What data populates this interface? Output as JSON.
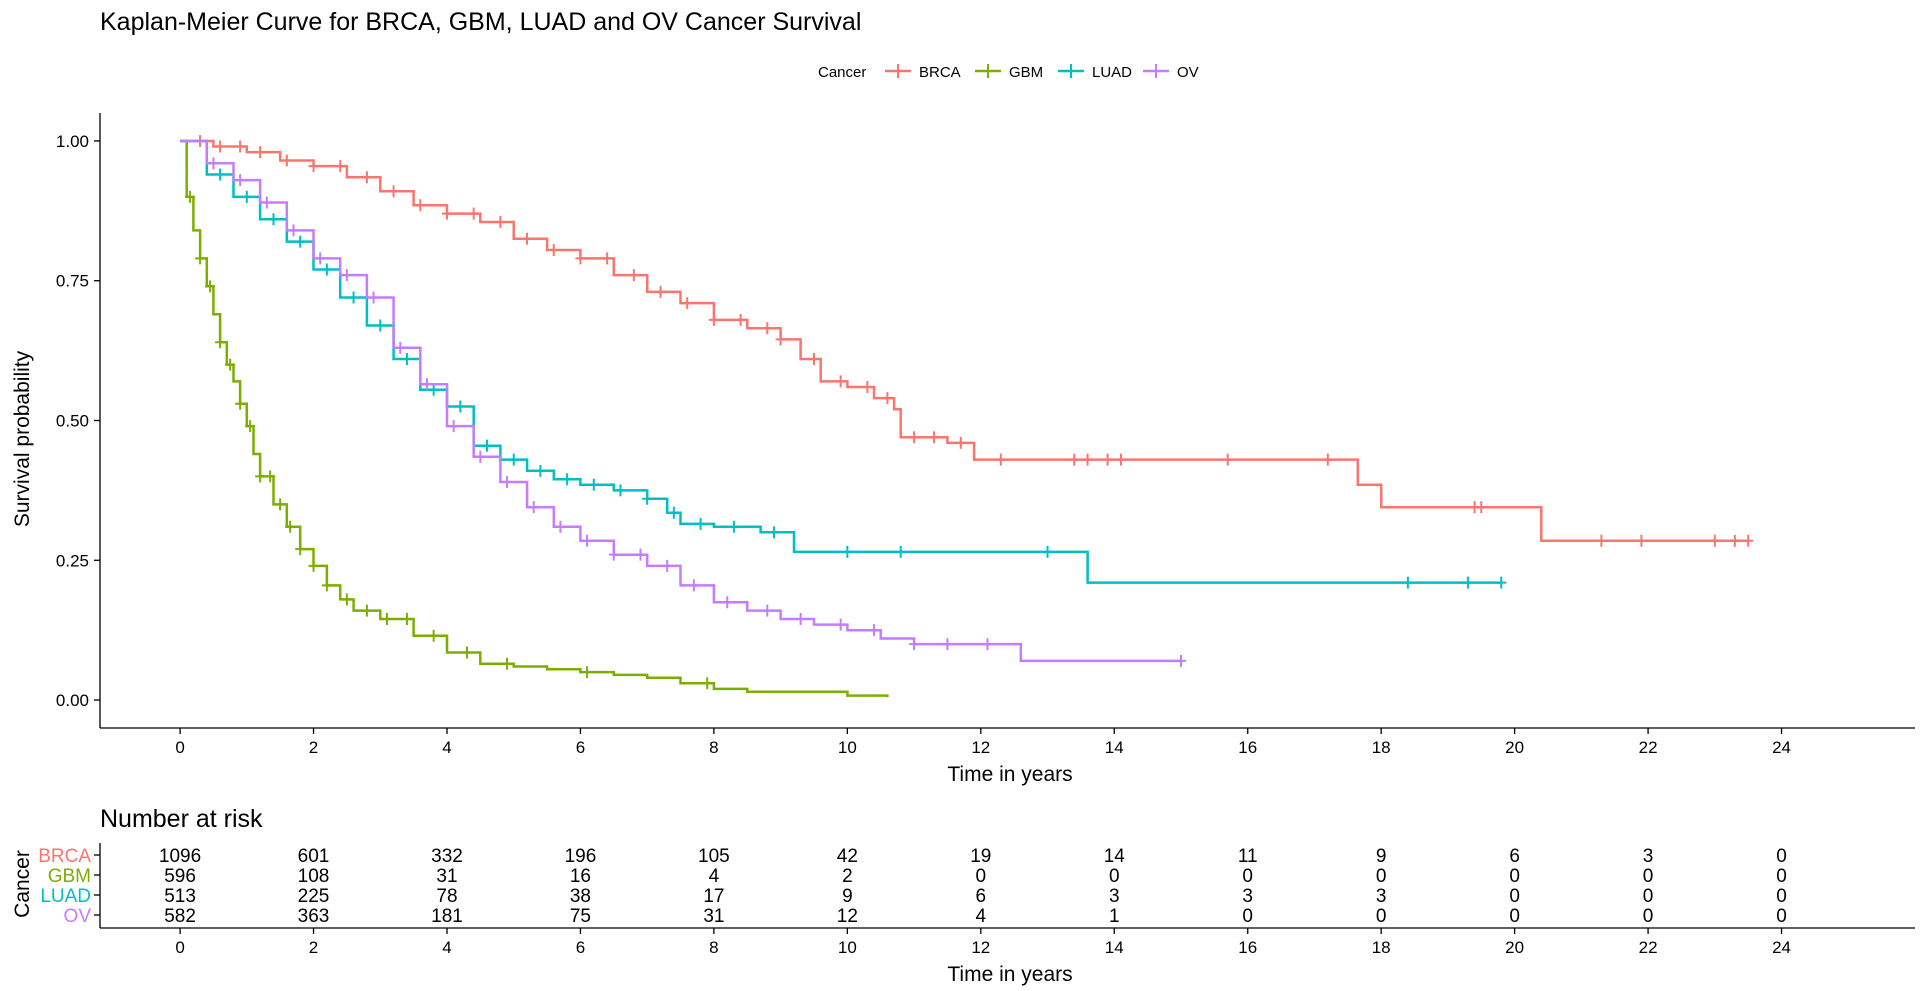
{
  "chart_data": [
    {
      "type": "line",
      "title": "Kaplan-Meier Curve for BRCA, GBM, LUAD and OV Cancer Survival",
      "xlabel": "Time in years",
      "ylabel": "Survival probability",
      "xlim": [
        -1.2,
        26.0
      ],
      "ylim": [
        -0.05,
        1.05
      ],
      "x_ticks": [
        0,
        2,
        4,
        6,
        8,
        10,
        12,
        14,
        16,
        18,
        20,
        22,
        24
      ],
      "y_ticks": [
        0,
        0.25,
        0.5,
        0.75,
        1.0
      ],
      "y_tick_labels": [
        "0.00",
        "0.25",
        "0.50",
        "0.75",
        "1.00"
      ],
      "grid": false,
      "legend": {
        "title": "Cancer",
        "position": "top",
        "entries": [
          "BRCA",
          "GBM",
          "LUAD",
          "OV"
        ]
      },
      "colors": {
        "BRCA": "#f8766d",
        "GBM": "#7cae00",
        "LUAD": "#00bfc4",
        "OV": "#c77cff"
      },
      "series": [
        {
          "name": "BRCA",
          "color": "#f8766d",
          "points": [
            [
              0,
              1.0
            ],
            [
              0.5,
              0.99
            ],
            [
              1.0,
              0.98
            ],
            [
              1.5,
              0.965
            ],
            [
              2.0,
              0.955
            ],
            [
              2.5,
              0.935
            ],
            [
              3.0,
              0.91
            ],
            [
              3.5,
              0.885
            ],
            [
              4.0,
              0.87
            ],
            [
              4.5,
              0.855
            ],
            [
              5.0,
              0.825
            ],
            [
              5.5,
              0.805
            ],
            [
              6.0,
              0.79
            ],
            [
              6.5,
              0.76
            ],
            [
              7.0,
              0.73
            ],
            [
              7.5,
              0.71
            ],
            [
              8.0,
              0.68
            ],
            [
              8.5,
              0.665
            ],
            [
              9.0,
              0.645
            ],
            [
              9.3,
              0.61
            ],
            [
              9.6,
              0.57
            ],
            [
              10.0,
              0.56
            ],
            [
              10.4,
              0.54
            ],
            [
              10.7,
              0.52
            ],
            [
              10.8,
              0.47
            ],
            [
              11.5,
              0.46
            ],
            [
              11.9,
              0.43
            ],
            [
              13.0,
              0.43
            ],
            [
              17.0,
              0.43
            ],
            [
              17.65,
              0.43
            ],
            [
              17.65,
              0.385
            ],
            [
              18.0,
              0.385
            ],
            [
              18.0,
              0.345
            ],
            [
              20.4,
              0.345
            ],
            [
              20.4,
              0.285
            ],
            [
              23.5,
              0.285
            ]
          ],
          "censor_times": [
            0.3,
            0.6,
            0.9,
            1.2,
            1.6,
            2.0,
            2.4,
            2.8,
            3.2,
            3.6,
            4.0,
            4.4,
            4.8,
            5.2,
            5.6,
            6.0,
            6.4,
            6.8,
            7.2,
            7.6,
            8.0,
            8.4,
            8.8,
            9.0,
            9.5,
            9.9,
            10.3,
            10.6,
            11.0,
            11.3,
            11.7,
            12.3,
            13.4,
            13.6,
            13.9,
            14.1,
            15.7,
            17.2,
            19.4,
            19.5,
            21.3,
            21.9,
            23.0,
            23.3,
            23.5
          ]
        },
        {
          "name": "GBM",
          "color": "#7cae00",
          "points": [
            [
              0,
              1.0
            ],
            [
              0.1,
              0.9
            ],
            [
              0.2,
              0.84
            ],
            [
              0.3,
              0.79
            ],
            [
              0.4,
              0.74
            ],
            [
              0.5,
              0.69
            ],
            [
              0.6,
              0.64
            ],
            [
              0.7,
              0.6
            ],
            [
              0.8,
              0.57
            ],
            [
              0.9,
              0.53
            ],
            [
              1.0,
              0.49
            ],
            [
              1.1,
              0.44
            ],
            [
              1.2,
              0.4
            ],
            [
              1.4,
              0.35
            ],
            [
              1.6,
              0.31
            ],
            [
              1.8,
              0.27
            ],
            [
              2.0,
              0.24
            ],
            [
              2.2,
              0.205
            ],
            [
              2.4,
              0.18
            ],
            [
              2.6,
              0.16
            ],
            [
              3.0,
              0.145
            ],
            [
              3.5,
              0.115
            ],
            [
              4.0,
              0.085
            ],
            [
              4.5,
              0.065
            ],
            [
              5.0,
              0.06
            ],
            [
              5.5,
              0.055
            ],
            [
              6.0,
              0.05
            ],
            [
              6.5,
              0.045
            ],
            [
              7.0,
              0.04
            ],
            [
              7.5,
              0.03
            ],
            [
              8.0,
              0.02
            ],
            [
              8.5,
              0.015
            ],
            [
              9.0,
              0.015
            ],
            [
              9.5,
              0.015
            ],
            [
              10.0,
              0.008
            ],
            [
              10.6,
              0.005
            ]
          ],
          "censor_times": [
            0.15,
            0.3,
            0.45,
            0.6,
            0.75,
            0.9,
            1.05,
            1.2,
            1.35,
            1.5,
            1.65,
            1.8,
            2.0,
            2.2,
            2.5,
            2.8,
            3.1,
            3.4,
            3.8,
            4.3,
            4.9,
            6.1,
            7.9
          ]
        },
        {
          "name": "LUAD",
          "color": "#00bfc4",
          "points": [
            [
              0,
              1.0
            ],
            [
              0.4,
              0.94
            ],
            [
              0.8,
              0.9
            ],
            [
              1.2,
              0.86
            ],
            [
              1.6,
              0.82
            ],
            [
              2.0,
              0.77
            ],
            [
              2.4,
              0.72
            ],
            [
              2.8,
              0.67
            ],
            [
              3.2,
              0.61
            ],
            [
              3.6,
              0.555
            ],
            [
              4.0,
              0.525
            ],
            [
              4.4,
              0.455
            ],
            [
              4.8,
              0.43
            ],
            [
              5.2,
              0.41
            ],
            [
              5.6,
              0.395
            ],
            [
              6.0,
              0.385
            ],
            [
              6.5,
              0.375
            ],
            [
              7.0,
              0.36
            ],
            [
              7.3,
              0.335
            ],
            [
              7.5,
              0.315
            ],
            [
              8.0,
              0.31
            ],
            [
              8.7,
              0.3
            ],
            [
              9.2,
              0.265
            ],
            [
              10.0,
              0.265
            ],
            [
              13.0,
              0.265
            ],
            [
              13.6,
              0.265
            ],
            [
              13.6,
              0.21
            ],
            [
              19.8,
              0.21
            ]
          ],
          "censor_times": [
            0.6,
            1.0,
            1.4,
            1.8,
            2.2,
            2.6,
            3.0,
            3.4,
            3.8,
            4.2,
            4.6,
            5.0,
            5.4,
            5.8,
            6.2,
            6.6,
            7.0,
            7.4,
            7.8,
            8.3,
            8.9,
            10.0,
            10.8,
            13.0,
            18.4,
            19.3,
            19.8
          ]
        },
        {
          "name": "OV",
          "color": "#c77cff",
          "points": [
            [
              0,
              1.0
            ],
            [
              0.4,
              0.96
            ],
            [
              0.8,
              0.93
            ],
            [
              1.2,
              0.89
            ],
            [
              1.6,
              0.84
            ],
            [
              2.0,
              0.79
            ],
            [
              2.4,
              0.76
            ],
            [
              2.8,
              0.72
            ],
            [
              3.2,
              0.63
            ],
            [
              3.6,
              0.565
            ],
            [
              4.0,
              0.49
            ],
            [
              4.4,
              0.435
            ],
            [
              4.8,
              0.39
            ],
            [
              5.2,
              0.345
            ],
            [
              5.6,
              0.31
            ],
            [
              6.0,
              0.285
            ],
            [
              6.5,
              0.26
            ],
            [
              7.0,
              0.24
            ],
            [
              7.5,
              0.205
            ],
            [
              8.0,
              0.175
            ],
            [
              8.5,
              0.16
            ],
            [
              9.0,
              0.145
            ],
            [
              9.5,
              0.135
            ],
            [
              10.0,
              0.125
            ],
            [
              10.5,
              0.11
            ],
            [
              11.0,
              0.1
            ],
            [
              12.0,
              0.1
            ],
            [
              12.6,
              0.1
            ],
            [
              12.6,
              0.07
            ],
            [
              15.0,
              0.07
            ]
          ],
          "censor_times": [
            0.5,
            0.9,
            1.3,
            1.7,
            2.1,
            2.5,
            2.9,
            3.3,
            3.7,
            4.1,
            4.5,
            4.9,
            5.3,
            5.7,
            6.1,
            6.5,
            6.9,
            7.3,
            7.7,
            8.2,
            8.8,
            9.3,
            9.9,
            10.4,
            11.0,
            11.5,
            12.1,
            15.0
          ]
        }
      ]
    },
    {
      "type": "table",
      "title": "Number at risk",
      "xlabel": "Time in years",
      "ylabel": "Cancer",
      "times": [
        0,
        2,
        4,
        6,
        8,
        10,
        12,
        14,
        16,
        18,
        20,
        22,
        24
      ],
      "rows": [
        {
          "name": "BRCA",
          "color": "#f8766d",
          "values": [
            1096,
            601,
            332,
            196,
            105,
            42,
            19,
            14,
            11,
            9,
            6,
            3,
            0
          ]
        },
        {
          "name": "GBM",
          "color": "#7cae00",
          "values": [
            596,
            108,
            31,
            16,
            4,
            2,
            0,
            0,
            0,
            0,
            0,
            0,
            0
          ]
        },
        {
          "name": "LUAD",
          "color": "#00bfc4",
          "values": [
            513,
            225,
            78,
            38,
            17,
            9,
            6,
            3,
            3,
            3,
            0,
            0,
            0
          ]
        },
        {
          "name": "OV",
          "color": "#c77cff",
          "values": [
            582,
            363,
            181,
            75,
            31,
            12,
            4,
            1,
            0,
            0,
            0,
            0,
            0
          ]
        }
      ]
    }
  ]
}
